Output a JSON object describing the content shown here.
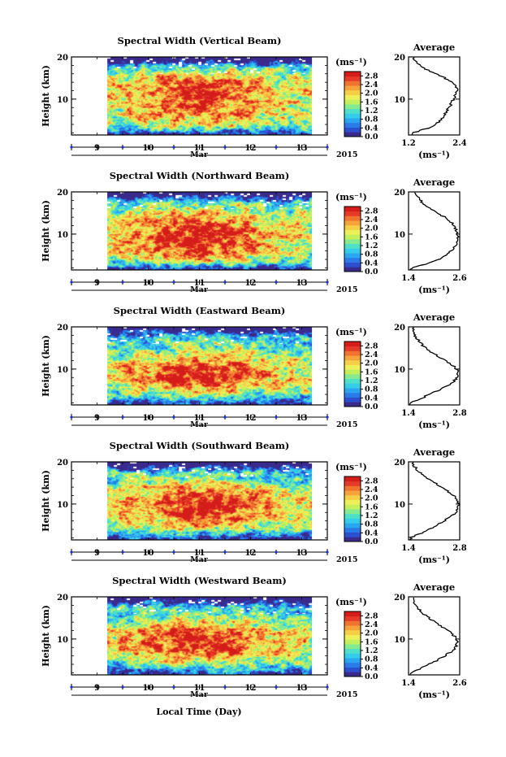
{
  "figure": {
    "xlabel": "Local Time (Day)",
    "month": "Mar",
    "year": "2015",
    "colorbar_unit": "(ms⁻¹)",
    "colorbar_ticks": [
      "0.0",
      "0.4",
      "0.8",
      "1.2",
      "1.6",
      "2.0",
      "2.4",
      "2.8"
    ],
    "profile_title": "Average",
    "profile_xlabel": "(ms⁻¹)",
    "ylabel": "Height (km)"
  },
  "colormap": [
    "#3a2a8c",
    "#2b4fcf",
    "#2a7be8",
    "#2aa7f0",
    "#35cdea",
    "#4fe0c8",
    "#86eb8e",
    "#c2ef5a",
    "#eef05a",
    "#f6cf48",
    "#f7a33c",
    "#f0732f",
    "#e53a28",
    "#d41d1a"
  ],
  "chart_data": [
    {
      "type": "heatmap",
      "title": "Spectral Width (Vertical Beam)",
      "x_ticks": [
        "9",
        "10",
        "11",
        "12",
        "13"
      ],
      "y_ticks": [
        "10",
        "20"
      ],
      "x_range_days": [
        8.5,
        13.5
      ],
      "data_start_day": 9.2,
      "data_end_day": 13.2,
      "y_range_km": [
        1.5,
        20
      ],
      "colorbar_range": [
        0.0,
        3.0
      ],
      "profile": {
        "xlim": [
          1.2,
          2.4
        ],
        "x_ticks": [
          "1.2",
          "2.4"
        ],
        "heights_km": [
          2,
          3,
          4,
          5,
          6,
          7,
          8,
          9,
          10,
          11,
          12,
          13,
          14,
          15,
          16,
          17,
          18,
          19,
          20
        ],
        "values": [
          1.3,
          1.62,
          1.85,
          1.95,
          2.02,
          2.1,
          2.15,
          2.2,
          2.25,
          2.3,
          2.35,
          2.32,
          2.22,
          2.05,
          1.85,
          1.62,
          1.45,
          1.35,
          1.3
        ]
      }
    },
    {
      "type": "heatmap",
      "title": "Spectral Width (Northward Beam)",
      "x_ticks": [
        "9",
        "10",
        "11",
        "12",
        "13"
      ],
      "y_ticks": [
        "10",
        "20"
      ],
      "x_range_days": [
        8.5,
        13.5
      ],
      "data_start_day": 9.2,
      "data_end_day": 13.2,
      "y_range_km": [
        1.5,
        20
      ],
      "colorbar_range": [
        0.0,
        3.0
      ],
      "profile": {
        "xlim": [
          1.4,
          2.6
        ],
        "x_ticks": [
          "1.4",
          "2.6"
        ],
        "heights_km": [
          2,
          3,
          4,
          5,
          6,
          7,
          8,
          9,
          10,
          11,
          12,
          13,
          14,
          15,
          16,
          17,
          18,
          19,
          20
        ],
        "values": [
          1.45,
          1.85,
          2.1,
          2.28,
          2.4,
          2.48,
          2.52,
          2.55,
          2.55,
          2.52,
          2.48,
          2.38,
          2.25,
          2.08,
          1.92,
          1.78,
          1.68,
          1.62,
          1.55
        ]
      }
    },
    {
      "type": "heatmap",
      "title": "Spectral Width (Eastward Beam)",
      "x_ticks": [
        "9",
        "10",
        "11",
        "12",
        "13"
      ],
      "y_ticks": [
        "10",
        "20"
      ],
      "x_range_days": [
        8.5,
        13.5
      ],
      "data_start_day": 9.2,
      "data_end_day": 13.2,
      "y_range_km": [
        1.5,
        20
      ],
      "colorbar_range": [
        0.0,
        3.0
      ],
      "profile": {
        "xlim": [
          1.4,
          2.8
        ],
        "x_ticks": [
          "1.4",
          "2.8"
        ],
        "heights_km": [
          2,
          3,
          4,
          5,
          6,
          7,
          8,
          9,
          10,
          11,
          12,
          13,
          14,
          15,
          16,
          17,
          18,
          19,
          20
        ],
        "values": [
          1.45,
          1.75,
          1.95,
          2.25,
          2.45,
          2.62,
          2.72,
          2.76,
          2.72,
          2.6,
          2.42,
          2.22,
          2.02,
          1.86,
          1.75,
          1.66,
          1.58,
          1.5,
          1.55
        ]
      }
    },
    {
      "type": "heatmap",
      "title": "Spectral Width (Southward Beam)",
      "x_ticks": [
        "9",
        "10",
        "11",
        "12",
        "13"
      ],
      "y_ticks": [
        "10",
        "20"
      ],
      "x_range_days": [
        8.5,
        13.5
      ],
      "data_start_day": 9.2,
      "data_end_day": 13.2,
      "y_range_km": [
        1.5,
        20
      ],
      "colorbar_range": [
        0.0,
        3.0
      ],
      "profile": {
        "xlim": [
          1.4,
          2.8
        ],
        "x_ticks": [
          "1.4",
          "2.8"
        ],
        "heights_km": [
          2,
          3,
          4,
          5,
          6,
          7,
          8,
          9,
          10,
          11,
          12,
          13,
          14,
          15,
          16,
          17,
          18,
          19,
          20
        ],
        "values": [
          1.45,
          1.72,
          1.95,
          2.18,
          2.38,
          2.55,
          2.68,
          2.75,
          2.78,
          2.75,
          2.65,
          2.48,
          2.3,
          2.12,
          1.95,
          1.8,
          1.65,
          1.55,
          1.5
        ]
      }
    },
    {
      "type": "heatmap",
      "title": "Spectral Width (Westward Beam)",
      "x_ticks": [
        "9",
        "10",
        "11",
        "12",
        "13"
      ],
      "y_ticks": [
        "10",
        "20"
      ],
      "x_range_days": [
        8.5,
        13.5
      ],
      "data_start_day": 9.2,
      "data_end_day": 13.2,
      "y_range_km": [
        1.5,
        20
      ],
      "colorbar_range": [
        0.0,
        3.0
      ],
      "profile": {
        "xlim": [
          1.4,
          2.6
        ],
        "x_ticks": [
          "1.4",
          "2.6"
        ],
        "heights_km": [
          2,
          3,
          4,
          5,
          6,
          7,
          8,
          9,
          10,
          11,
          12,
          13,
          14,
          15,
          16,
          17,
          18,
          19,
          20
        ],
        "values": [
          1.45,
          1.68,
          1.88,
          2.08,
          2.25,
          2.4,
          2.5,
          2.55,
          2.52,
          2.45,
          2.32,
          2.18,
          2.02,
          1.88,
          1.75,
          1.65,
          1.58,
          1.52,
          1.55
        ]
      }
    }
  ]
}
